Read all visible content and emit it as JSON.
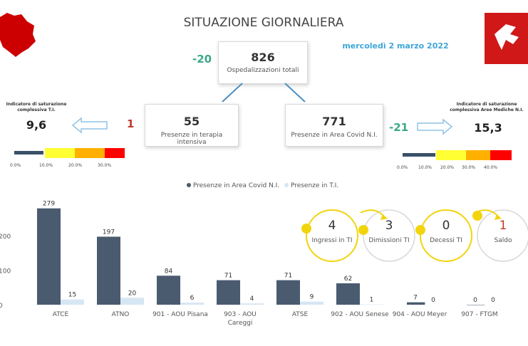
{
  "header": {
    "title": "SITUAZIONE GIORNALIERA",
    "date": "mercoledì 2 marzo 2022",
    "left_logo": "tuscany-map-icon",
    "right_logo": "tuscany-flag-icon"
  },
  "totals": {
    "value": "826",
    "label": "Ospedalizzazioni totali",
    "delta": "-20"
  },
  "ti": {
    "value": "55",
    "label": "Presenze in terapia intensiva",
    "delta": "1",
    "indicator_title_1": "Indicatore di saturazione",
    "indicator_title_2": "complessiva T.I.",
    "indicator_value": "9,6",
    "ticks": [
      "0.0%",
      "10.0%",
      "20.0%",
      "30.0%"
    ],
    "level_fraction": 0.096
  },
  "covid": {
    "value": "771",
    "label": "Presenze in Area Covid N.I.",
    "delta": "-21",
    "indicator_title_1": "Indicatore di saturazione",
    "indicator_title_2": "complessiva Aree Mediche N.I.",
    "indicator_value": "15,3",
    "ticks": [
      "0.0%",
      "10.0%",
      "20.0%",
      "30.0%",
      "40.0%"
    ],
    "level_fraction": 0.153
  },
  "colors": {
    "dark": "#4a5b70",
    "light": "#d6e6f3",
    "green": "#3aa88a",
    "red": "#c0392b",
    "blue_text": "#3ea6d8",
    "yellow": "#f2d40d",
    "bar_yellow": "#ffff33",
    "bar_orange": "#ffb000",
    "bar_red": "#ff0000"
  },
  "flow": [
    {
      "value": "4",
      "label": "Ingressi in TI"
    },
    {
      "value": "3",
      "label": "Dimissioni TI"
    },
    {
      "value": "0",
      "label": "Decessi TI"
    },
    {
      "value": "1",
      "label": "Saldo"
    }
  ],
  "chart_data": {
    "type": "bar",
    "categories": [
      "ATCE",
      "ATNO",
      "901 - AOU Pisana",
      "903 - AOU Careggi",
      "ATSE",
      "902 - AOU Senese",
      "904 - AOU Meyer",
      "907 - FTGM"
    ],
    "series": [
      {
        "name": "Presenze in Area Covid N.I.",
        "values": [
          279,
          197,
          84,
          71,
          71,
          62,
          7,
          0
        ]
      },
      {
        "name": "Presenze in T.I.",
        "values": [
          15,
          20,
          6,
          4,
          9,
          1,
          0,
          0
        ]
      }
    ],
    "y_ticks": [
      "200",
      "100",
      "0"
    ],
    "ylim": [
      0,
      300
    ],
    "legend": "top-center"
  }
}
